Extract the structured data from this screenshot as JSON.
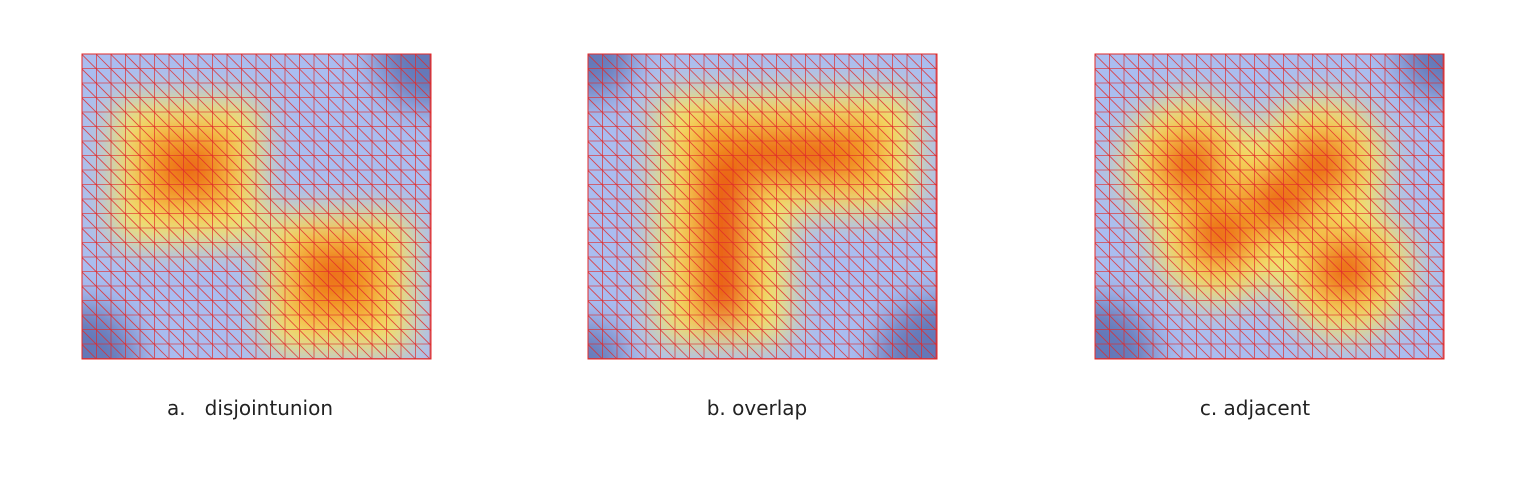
{
  "captions": [
    "a.   disjointunion",
    "b. overlap",
    "c. adjacent"
  ]
}
